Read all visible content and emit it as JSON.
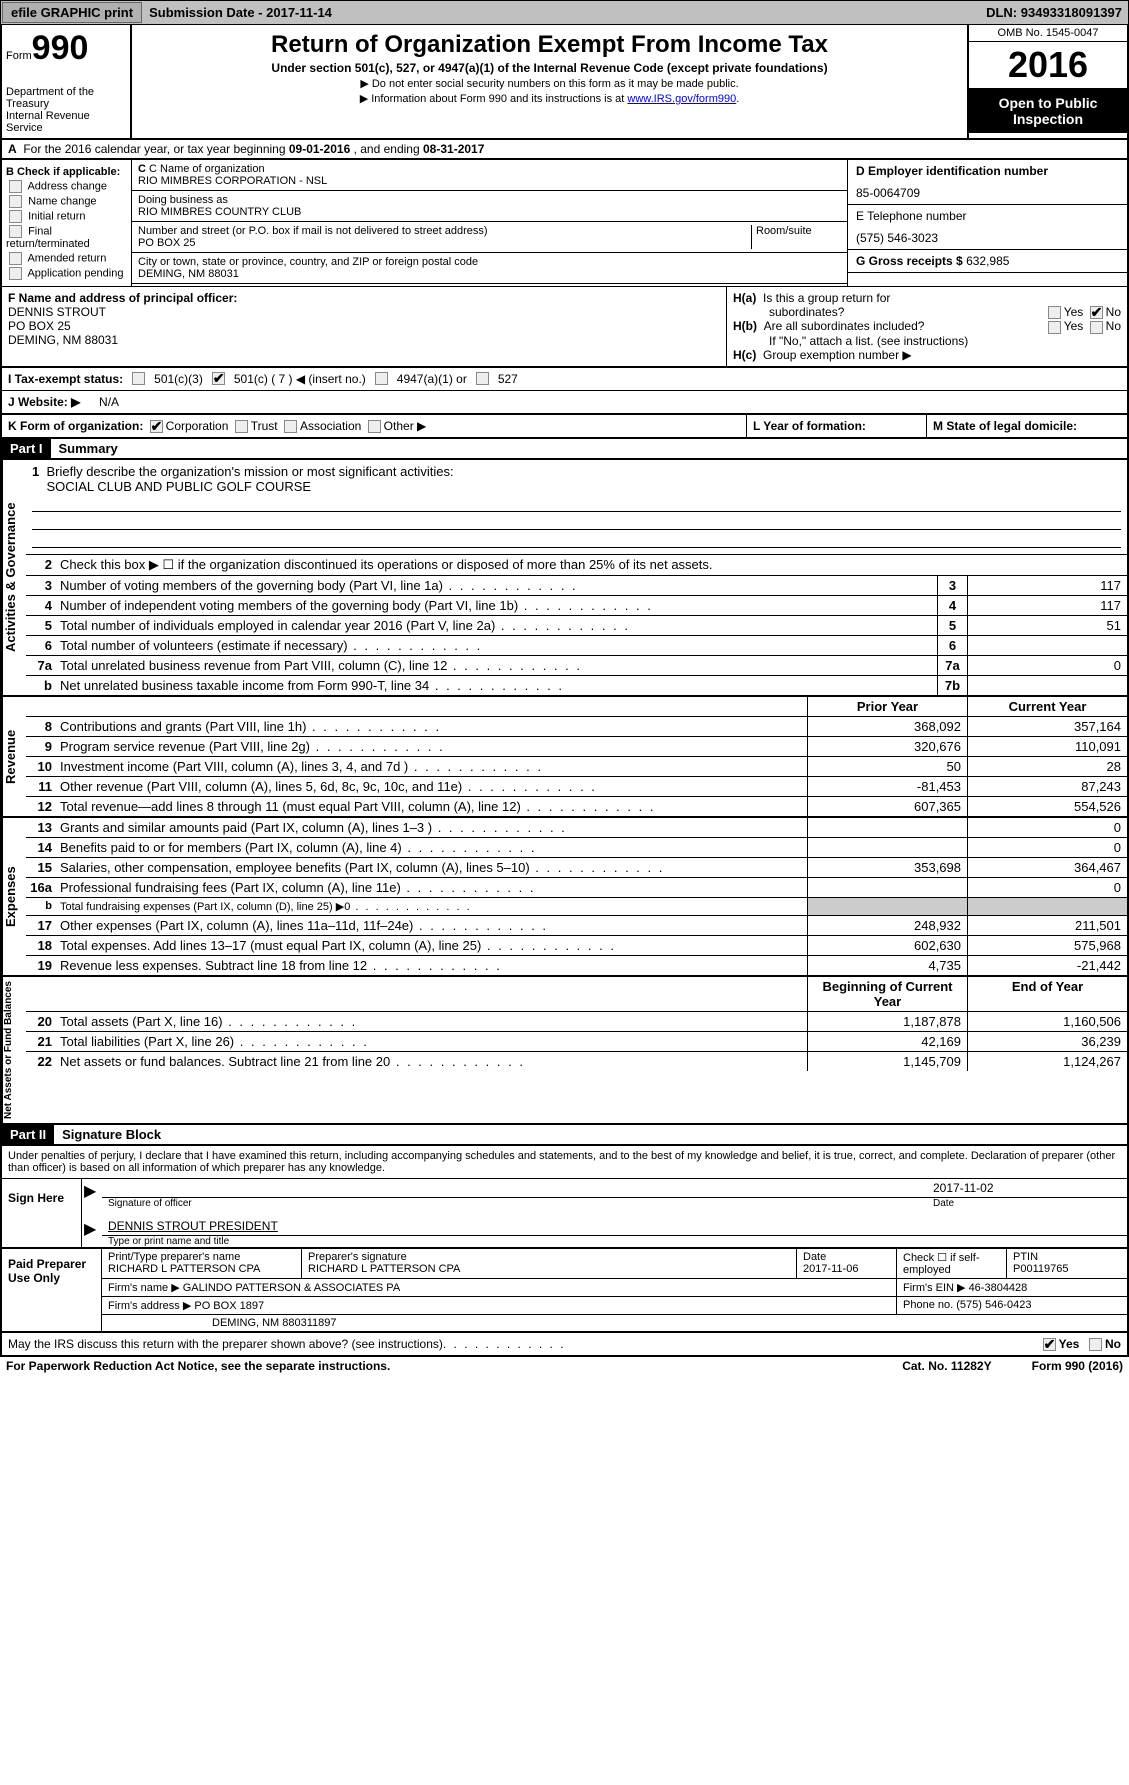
{
  "topbar": {
    "efile": "efile GRAPHIC print",
    "sub_label": "Submission Date -",
    "sub_date": "2017-11-14",
    "dln_label": "DLN:",
    "dln": "93493318091397"
  },
  "header": {
    "form_word": "Form",
    "form_num": "990",
    "dept1": "Department of the Treasury",
    "dept2": "Internal Revenue Service",
    "title": "Return of Organization Exempt From Income Tax",
    "sub": "Under section 501(c), 527, or 4947(a)(1) of the Internal Revenue Code (except private foundations)",
    "line1": "▶ Do not enter social security numbers on this form as it may be made public.",
    "line2_a": "▶ Information about Form 990 and its instructions is at ",
    "line2_link": "www.IRS.gov/form990",
    "omb": "OMB No. 1545-0047",
    "year": "2016",
    "open": "Open to Public Inspection"
  },
  "row_a": {
    "label_a": "A",
    "text": "For the 2016 calendar year, or tax year beginning",
    "begin": "09-01-2016",
    "mid": ", and ending",
    "end": "08-31-2017"
  },
  "col_b": {
    "hdr": "B Check if applicable:",
    "items": [
      "Address change",
      "Name change",
      "Initial return",
      "Final return/terminated",
      "Amended return",
      "Application pending"
    ]
  },
  "col_c": {
    "name_lbl": "C Name of organization",
    "name": "RIO MIMBRES CORPORATION - NSL",
    "dba_lbl": "Doing business as",
    "dba": "RIO MIMBRES COUNTRY CLUB",
    "street_lbl": "Number and street (or P.O. box if mail is not delivered to street address)",
    "room_lbl": "Room/suite",
    "street": "PO BOX 25",
    "city_lbl": "City or town, state or province, country, and ZIP or foreign postal code",
    "city": "DEMING, NM  88031"
  },
  "col_d": {
    "ein_lbl": "D Employer identification number",
    "ein": "85-0064709",
    "tel_lbl": "E Telephone number",
    "tel": "(575) 546-3023",
    "gross_lbl": "G Gross receipts $",
    "gross": "632,985"
  },
  "sec_f": {
    "lbl": "F  Name and address of principal officer:",
    "name": "DENNIS STROUT",
    "addr1": "PO BOX 25",
    "addr2": "DEMING, NM   88031"
  },
  "sec_h": {
    "ha_lbl": "H(a)",
    "ha_q1": "Is this a group return for",
    "ha_q2": "subordinates?",
    "yes": "Yes",
    "no": "No",
    "hb_lbl": "H(b)",
    "hb_q": "Are all subordinates included?",
    "hb_note": "If \"No,\" attach a list. (see instructions)",
    "hc_lbl": "H(c)",
    "hc_q": "Group exemption number ▶"
  },
  "row_i": {
    "lbl": "I  Tax-exempt status:",
    "o1": "501(c)(3)",
    "o2": "501(c) ( 7 ) ◀ (insert no.)",
    "o3": "4947(a)(1) or",
    "o4": "527"
  },
  "row_j": {
    "lbl": "J  Website: ▶",
    "val": "N/A"
  },
  "row_k": {
    "k": "K Form of organization:",
    "c": "Corporation",
    "t": "Trust",
    "a": "Association",
    "o": "Other ▶",
    "l": "L Year of formation:",
    "m": "M State of legal domicile:"
  },
  "part1": {
    "hdr": "Part I",
    "title": "Summary"
  },
  "gov": {
    "tab": "Activities & Governance",
    "l1": "Briefly describe the organization's mission or most significant activities:",
    "l1v": "SOCIAL CLUB AND PUBLIC GOLF COURSE",
    "l2": "Check this box ▶ ☐  if the organization discontinued its operations or disposed of more than 25% of its net assets.",
    "l3": "Number of voting members of the governing body (Part VI, line 1a)",
    "l3v": "117",
    "l4": "Number of independent voting members of the governing body (Part VI, line 1b)",
    "l4v": "117",
    "l5": "Total number of individuals employed in calendar year 2016 (Part V, line 2a)",
    "l5v": "51",
    "l6": "Total number of volunteers (estimate if necessary)",
    "l7a": "Total unrelated business revenue from Part VIII, column (C), line 12",
    "l7av": "0",
    "l7b": "Net unrelated business taxable income from Form 990-T, line 34"
  },
  "rev": {
    "tab": "Revenue",
    "hdr_prior": "Prior Year",
    "hdr_curr": "Current Year",
    "rows": [
      {
        "n": "8",
        "d": "Contributions and grants (Part VIII, line 1h)",
        "p": "368,092",
        "c": "357,164"
      },
      {
        "n": "9",
        "d": "Program service revenue (Part VIII, line 2g)",
        "p": "320,676",
        "c": "110,091"
      },
      {
        "n": "10",
        "d": "Investment income (Part VIII, column (A), lines 3, 4, and 7d )",
        "p": "50",
        "c": "28"
      },
      {
        "n": "11",
        "d": "Other revenue (Part VIII, column (A), lines 5, 6d, 8c, 9c, 10c, and 11e)",
        "p": "-81,453",
        "c": "87,243"
      },
      {
        "n": "12",
        "d": "Total revenue—add lines 8 through 11 (must equal Part VIII, column (A), line 12)",
        "p": "607,365",
        "c": "554,526"
      }
    ]
  },
  "exp": {
    "tab": "Expenses",
    "rows": [
      {
        "n": "13",
        "d": "Grants and similar amounts paid (Part IX, column (A), lines 1–3 )",
        "p": "",
        "c": "0"
      },
      {
        "n": "14",
        "d": "Benefits paid to or for members (Part IX, column (A), line 4)",
        "p": "",
        "c": "0"
      },
      {
        "n": "15",
        "d": "Salaries, other compensation, employee benefits (Part IX, column (A), lines 5–10)",
        "p": "353,698",
        "c": "364,467"
      },
      {
        "n": "16a",
        "d": "Professional fundraising fees (Part IX, column (A), line 11e)",
        "p": "",
        "c": "0"
      },
      {
        "n": "b",
        "d": "Total fundraising expenses (Part IX, column (D), line 25) ▶0",
        "p": "",
        "c": "",
        "shade": true,
        "small": true
      },
      {
        "n": "17",
        "d": "Other expenses (Part IX, column (A), lines 11a–11d, 11f–24e)",
        "p": "248,932",
        "c": "211,501"
      },
      {
        "n": "18",
        "d": "Total expenses. Add lines 13–17 (must equal Part IX, column (A), line 25)",
        "p": "602,630",
        "c": "575,968"
      },
      {
        "n": "19",
        "d": "Revenue less expenses. Subtract line 18 from line 12",
        "p": "4,735",
        "c": "-21,442"
      }
    ]
  },
  "net": {
    "tab": "Net Assets or Fund Balances",
    "hdr_prior": "Beginning of Current Year",
    "hdr_curr": "End of Year",
    "rows": [
      {
        "n": "20",
        "d": "Total assets (Part X, line 16)",
        "p": "1,187,878",
        "c": "1,160,506"
      },
      {
        "n": "21",
        "d": "Total liabilities (Part X, line 26)",
        "p": "42,169",
        "c": "36,239"
      },
      {
        "n": "22",
        "d": "Net assets or fund balances. Subtract line 21 from line 20",
        "p": "1,145,709",
        "c": "1,124,267"
      }
    ]
  },
  "part2": {
    "hdr": "Part II",
    "title": "Signature Block"
  },
  "sig": {
    "intro": "Under penalties of perjury, I declare that I have examined this return, including accompanying schedules and statements, and to the best of my knowledge and belief, it is true, correct, and complete. Declaration of preparer (other than officer) is based on all information of which preparer has any knowledge.",
    "left": "Sign Here",
    "date": "2017-11-02",
    "sig_lbl": "Signature of officer",
    "date_lbl": "Date",
    "name": "DENNIS STROUT PRESIDENT",
    "name_lbl": "Type or print name and title"
  },
  "prep": {
    "left": "Paid Preparer Use Only",
    "r1": {
      "c1l": "Print/Type preparer's name",
      "c1": "RICHARD L PATTERSON CPA",
      "c2l": "Preparer's signature",
      "c2": "RICHARD L PATTERSON CPA",
      "c3l": "Date",
      "c3": "2017-11-06",
      "c4": "Check ☐ if self-employed",
      "c5l": "PTIN",
      "c5": "P00119765"
    },
    "r2": {
      "c1l": "Firm's name    ▶",
      "c1": "GALINDO PATTERSON & ASSOCIATES PA",
      "c2l": "Firm's EIN ▶",
      "c2": "46-3804428"
    },
    "r3": {
      "c1l": "Firm's address ▶",
      "c1": "PO BOX 1897",
      "c2l": "Phone no.",
      "c2": "(575) 546-0423"
    },
    "r4": "DEMING, NM  880311897"
  },
  "footer": {
    "q": "May the IRS discuss this return with the preparer shown above? (see instructions)",
    "yes": "Yes",
    "no": "No"
  },
  "bottom": {
    "left": "For Paperwork Reduction Act Notice, see the separate instructions.",
    "mid": "Cat. No. 11282Y",
    "right": "Form 990 (2016)"
  }
}
